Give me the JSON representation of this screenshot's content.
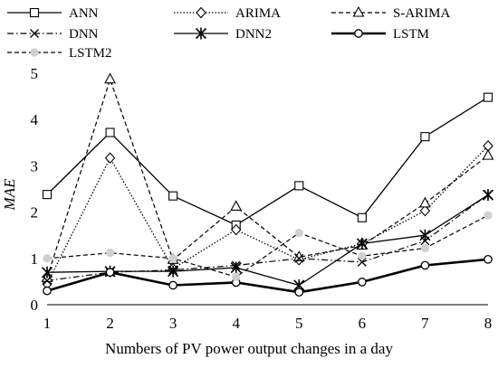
{
  "chart_data": {
    "type": "line",
    "xlabel": "Numbers of PV power output changes in a day",
    "ylabel": "MAE",
    "x": [
      1,
      2,
      3,
      4,
      5,
      6,
      7,
      8
    ],
    "xlim": [
      1,
      8
    ],
    "ylim": [
      0,
      5
    ],
    "yticks": [
      0,
      1,
      2,
      3,
      4,
      5
    ],
    "grid": false,
    "legend_position": "top",
    "series": [
      {
        "name": "ANN",
        "marker": "square",
        "dash": "solid",
        "values": [
          2.38,
          3.72,
          2.35,
          1.72,
          2.57,
          1.88,
          3.63,
          4.48
        ]
      },
      {
        "name": "ARIMA",
        "marker": "diamond",
        "dash": "dotted",
        "values": [
          0.45,
          3.17,
          0.78,
          1.62,
          0.97,
          1.32,
          2.03,
          3.43
        ]
      },
      {
        "name": "S-ARIMA",
        "marker": "triangle",
        "dash": "dashed",
        "values": [
          0.58,
          4.87,
          0.97,
          2.12,
          1.03,
          1.28,
          2.19,
          3.22
        ]
      },
      {
        "name": "DNN",
        "marker": "x",
        "dash": "dashdot",
        "values": [
          0.52,
          0.7,
          0.75,
          0.85,
          1.0,
          0.92,
          1.38,
          2.38
        ]
      },
      {
        "name": "DNN2",
        "marker": "star",
        "dash": "solid",
        "values": [
          0.7,
          0.72,
          0.72,
          0.8,
          0.42,
          1.32,
          1.5,
          2.37
        ]
      },
      {
        "name": "LSTM",
        "marker": "circle",
        "dash": "solid-bold",
        "values": [
          0.3,
          0.7,
          0.42,
          0.48,
          0.27,
          0.49,
          0.85,
          0.98
        ]
      },
      {
        "name": "LSTM2",
        "marker": "filled-circle",
        "dash": "dashed-gray",
        "values": [
          1.0,
          1.12,
          1.0,
          0.6,
          1.55,
          1.05,
          1.22,
          1.93
        ]
      }
    ]
  }
}
